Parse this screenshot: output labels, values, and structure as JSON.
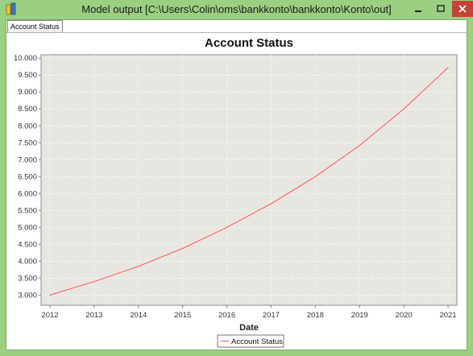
{
  "window": {
    "title": "Model output  [C:\\Users\\Colin\\oms\\bankkonto\\bankkonto\\Konto\\out]",
    "colors": {
      "frame": "#9bcf81",
      "close_button": "#c7413a"
    }
  },
  "tabs": [
    {
      "label": "Account Status",
      "selected": true
    }
  ],
  "chart_data": {
    "type": "line",
    "title": "Account Status",
    "xlabel": "Date",
    "ylabel": "",
    "x": [
      2012,
      2013,
      2014,
      2015,
      2016,
      2017,
      2018,
      2019,
      2020,
      2021
    ],
    "series": [
      {
        "name": "Account Status",
        "color": "#ff5555",
        "values": [
          3000,
          3400,
          3850,
          4380,
          5000,
          5700,
          6500,
          7420,
          8500,
          9720
        ]
      }
    ],
    "xlim": [
      2011.8,
      2021.2
    ],
    "ylim": [
      2700,
      10100
    ],
    "x_ticks": [
      "2012",
      "2013",
      "2014",
      "2015",
      "2016",
      "2017",
      "2018",
      "2019",
      "2020",
      "2021"
    ],
    "y_ticks": [
      "3.000",
      "3.500",
      "4.000",
      "4.500",
      "5.000",
      "5.500",
      "6.000",
      "6.500",
      "7.000",
      "7.500",
      "8.000",
      "8.500",
      "9.000",
      "9.500",
      "10.000"
    ],
    "grid": true,
    "legend": "bottom-center",
    "plot_background": "#e8e6e1"
  }
}
